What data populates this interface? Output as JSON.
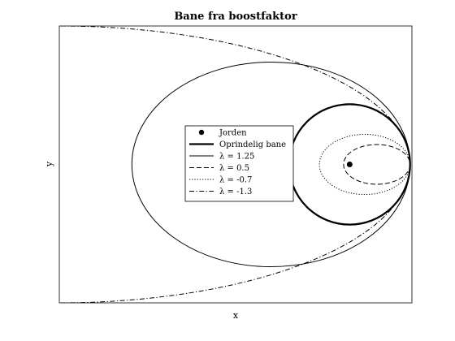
{
  "chart_data": {
    "type": "line",
    "title": "Bane fra boostfaktor",
    "xlabel": "x",
    "ylabel": "y",
    "xlim": [
      -4.8,
      1.03
    ],
    "ylim": [
      -2.3,
      2.3
    ],
    "grid": false,
    "ticks": false,
    "legend_position": "center-left",
    "point": {
      "name": "Jorden",
      "x": 0,
      "y": 0
    },
    "series": [
      {
        "name": "Oprindelig bane",
        "style": "solid-thick",
        "a": 1.0,
        "b": 1.0
      },
      {
        "name": "λ = 1.25",
        "style": "solid",
        "a": 2.3,
        "b": 1.7
      },
      {
        "name": "λ = 0.5",
        "style": "dashed",
        "a": 0.55,
        "b": 0.33
      },
      {
        "name": "λ = -0.7",
        "style": "dotted",
        "a": 0.75,
        "b": 0.5
      },
      {
        "name": "λ = -1.3",
        "style": "dashdot",
        "a": 5.8,
        "b": 2.3
      }
    ]
  }
}
